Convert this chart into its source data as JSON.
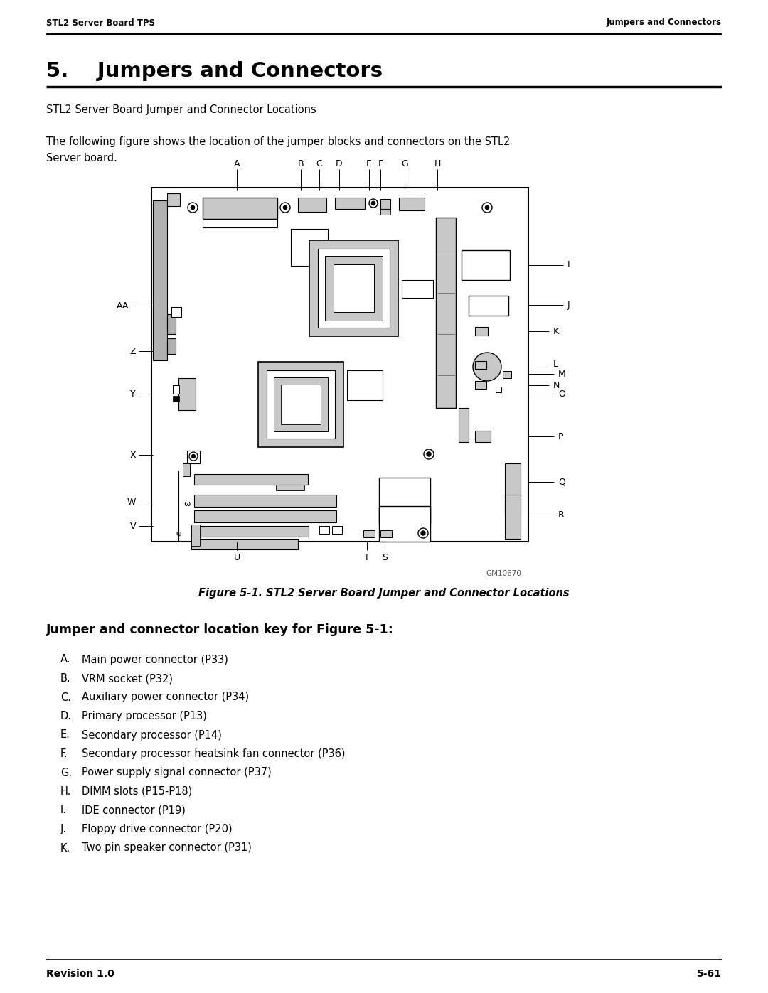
{
  "header_left": "STL2 Server Board TPS",
  "header_right": "Jumpers and Connectors",
  "chapter_title": "5.    Jumpers and Connectors",
  "subtitle": "STL2 Server Board Jumper and Connector Locations",
  "intro_line1": "The following figure shows the location of the jumper blocks and connectors on the STL2",
  "intro_line2": "Server board.",
  "figure_caption": "Figure 5-1. STL2 Server Board Jumper and Connector Locations",
  "section_header": "Jumper and connector location key for Figure 5-1:",
  "items": [
    [
      "A.",
      "Main power connector (P33)"
    ],
    [
      "B.",
      "VRM socket (P32)"
    ],
    [
      "C.",
      "Auxiliary power connector (P34)"
    ],
    [
      "D.",
      "Primary processor (P13)"
    ],
    [
      "E.",
      "Secondary processor (P14)"
    ],
    [
      "F.",
      "Secondary processor heatsink fan connector (P36)"
    ],
    [
      "G.",
      "Power supply signal connector (P37)"
    ],
    [
      "H.",
      "DIMM slots (P15-P18)"
    ],
    [
      "I.",
      "IDE connector (P19)"
    ],
    [
      "J.",
      "Floppy drive connector (P20)"
    ],
    [
      "K.",
      "Two pin speaker connector (P31)"
    ]
  ],
  "footer_left": "Revision 1.0",
  "footer_right": "5-61",
  "bg_color": "#ffffff",
  "gray": "#b0b0b0",
  "lgray": "#c8c8c8",
  "dgray": "#7a7a7a"
}
